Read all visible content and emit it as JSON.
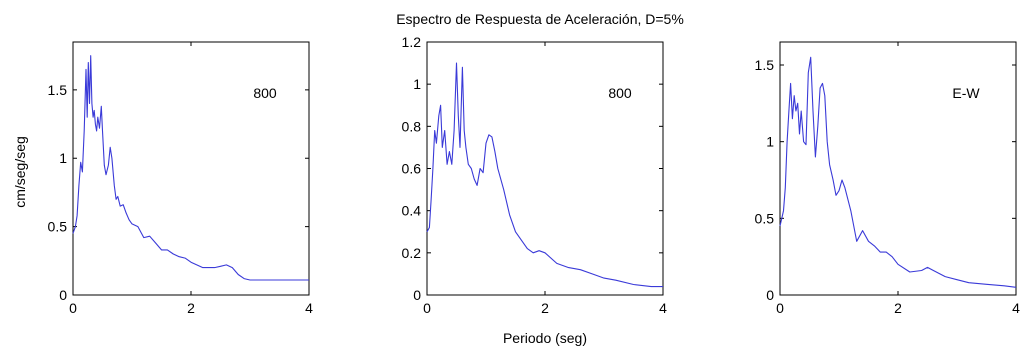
{
  "figure": {
    "title": "Espectro de Respuesta de Aceleración, D=5%",
    "shared_ylabel": "cm/seg/seg",
    "shared_xlabel": "Periodo (seg)",
    "line_color": "#3a3ad8"
  },
  "chart_data": [
    {
      "type": "line",
      "title": "",
      "annotation": "800",
      "xlabel": "",
      "ylabel": "cm/seg/seg",
      "xlim": [
        0,
        4
      ],
      "ylim": [
        0,
        1.85
      ],
      "xticks": [
        0,
        2,
        4
      ],
      "yticks": [
        0,
        0.5,
        1,
        1.5
      ],
      "grid": false,
      "series": [
        {
          "x": [
            0.0,
            0.04,
            0.07,
            0.1,
            0.13,
            0.16,
            0.19,
            0.2,
            0.22,
            0.24,
            0.26,
            0.28,
            0.3,
            0.32,
            0.34,
            0.36,
            0.38,
            0.4,
            0.42,
            0.45,
            0.48,
            0.5,
            0.53,
            0.56,
            0.6,
            0.63,
            0.66,
            0.7,
            0.73,
            0.76,
            0.8,
            0.85,
            0.9,
            0.95,
            1.0,
            1.1,
            1.2,
            1.3,
            1.4,
            1.5,
            1.6,
            1.7,
            1.8,
            1.9,
            2.0,
            2.2,
            2.4,
            2.5,
            2.6,
            2.7,
            2.8,
            2.9,
            3.0,
            3.5,
            4.0
          ],
          "y": [
            0.45,
            0.5,
            0.58,
            0.8,
            0.97,
            0.9,
            1.2,
            1.35,
            1.65,
            1.3,
            1.7,
            1.4,
            1.75,
            1.4,
            1.3,
            1.35,
            1.25,
            1.2,
            1.3,
            1.22,
            1.38,
            1.2,
            0.95,
            0.88,
            0.95,
            1.08,
            1.0,
            0.8,
            0.7,
            0.72,
            0.65,
            0.66,
            0.6,
            0.55,
            0.52,
            0.5,
            0.42,
            0.43,
            0.38,
            0.33,
            0.33,
            0.3,
            0.28,
            0.27,
            0.24,
            0.2,
            0.2,
            0.21,
            0.22,
            0.2,
            0.15,
            0.12,
            0.11,
            0.11,
            0.11
          ]
        }
      ]
    },
    {
      "type": "line",
      "title": "",
      "annotation": "800",
      "xlabel": "Periodo (seg)",
      "ylabel": "",
      "xlim": [
        0,
        4
      ],
      "ylim": [
        0,
        1.2
      ],
      "xticks": [
        0,
        2,
        4
      ],
      "yticks": [
        0,
        0.2,
        0.4,
        0.6,
        0.8,
        1,
        1.2
      ],
      "grid": false,
      "series": [
        {
          "x": [
            0.0,
            0.04,
            0.07,
            0.1,
            0.13,
            0.16,
            0.2,
            0.23,
            0.26,
            0.3,
            0.34,
            0.38,
            0.42,
            0.46,
            0.5,
            0.53,
            0.56,
            0.6,
            0.63,
            0.66,
            0.7,
            0.75,
            0.8,
            0.85,
            0.9,
            0.95,
            1.0,
            1.05,
            1.1,
            1.15,
            1.2,
            1.3,
            1.4,
            1.5,
            1.6,
            1.7,
            1.8,
            1.9,
            2.0,
            2.2,
            2.4,
            2.6,
            2.8,
            3.0,
            3.2,
            3.5,
            3.8,
            4.0
          ],
          "y": [
            0.3,
            0.32,
            0.45,
            0.6,
            0.78,
            0.72,
            0.85,
            0.9,
            0.7,
            0.78,
            0.62,
            0.68,
            0.62,
            0.78,
            1.1,
            0.85,
            0.7,
            1.08,
            0.78,
            0.7,
            0.62,
            0.6,
            0.55,
            0.52,
            0.6,
            0.58,
            0.72,
            0.76,
            0.75,
            0.68,
            0.6,
            0.5,
            0.38,
            0.3,
            0.26,
            0.22,
            0.2,
            0.21,
            0.2,
            0.15,
            0.13,
            0.12,
            0.1,
            0.08,
            0.07,
            0.05,
            0.04,
            0.04
          ]
        }
      ]
    },
    {
      "type": "line",
      "title": "",
      "annotation": "E-W",
      "xlabel": "",
      "ylabel": "",
      "xlim": [
        0,
        4
      ],
      "ylim": [
        0,
        1.65
      ],
      "xticks": [
        0,
        2,
        4
      ],
      "yticks": [
        0,
        0.5,
        1,
        1.5
      ],
      "grid": false,
      "series": [
        {
          "x": [
            0.0,
            0.03,
            0.06,
            0.09,
            0.12,
            0.15,
            0.18,
            0.21,
            0.24,
            0.27,
            0.3,
            0.33,
            0.36,
            0.4,
            0.44,
            0.48,
            0.52,
            0.56,
            0.6,
            0.64,
            0.68,
            0.72,
            0.76,
            0.8,
            0.84,
            0.9,
            0.95,
            1.0,
            1.05,
            1.1,
            1.2,
            1.3,
            1.4,
            1.5,
            1.6,
            1.7,
            1.8,
            1.9,
            2.0,
            2.2,
            2.4,
            2.5,
            2.6,
            2.8,
            3.0,
            3.2,
            3.5,
            3.8,
            4.0
          ],
          "y": [
            0.45,
            0.5,
            0.55,
            0.7,
            1.0,
            1.2,
            1.38,
            1.15,
            1.3,
            1.2,
            1.25,
            1.05,
            1.2,
            1.0,
            0.98,
            1.45,
            1.55,
            1.2,
            0.9,
            1.1,
            1.35,
            1.38,
            1.3,
            1.0,
            0.85,
            0.75,
            0.65,
            0.68,
            0.75,
            0.7,
            0.55,
            0.35,
            0.42,
            0.35,
            0.32,
            0.28,
            0.28,
            0.25,
            0.2,
            0.15,
            0.16,
            0.18,
            0.16,
            0.12,
            0.1,
            0.08,
            0.07,
            0.06,
            0.05
          ]
        }
      ]
    }
  ]
}
